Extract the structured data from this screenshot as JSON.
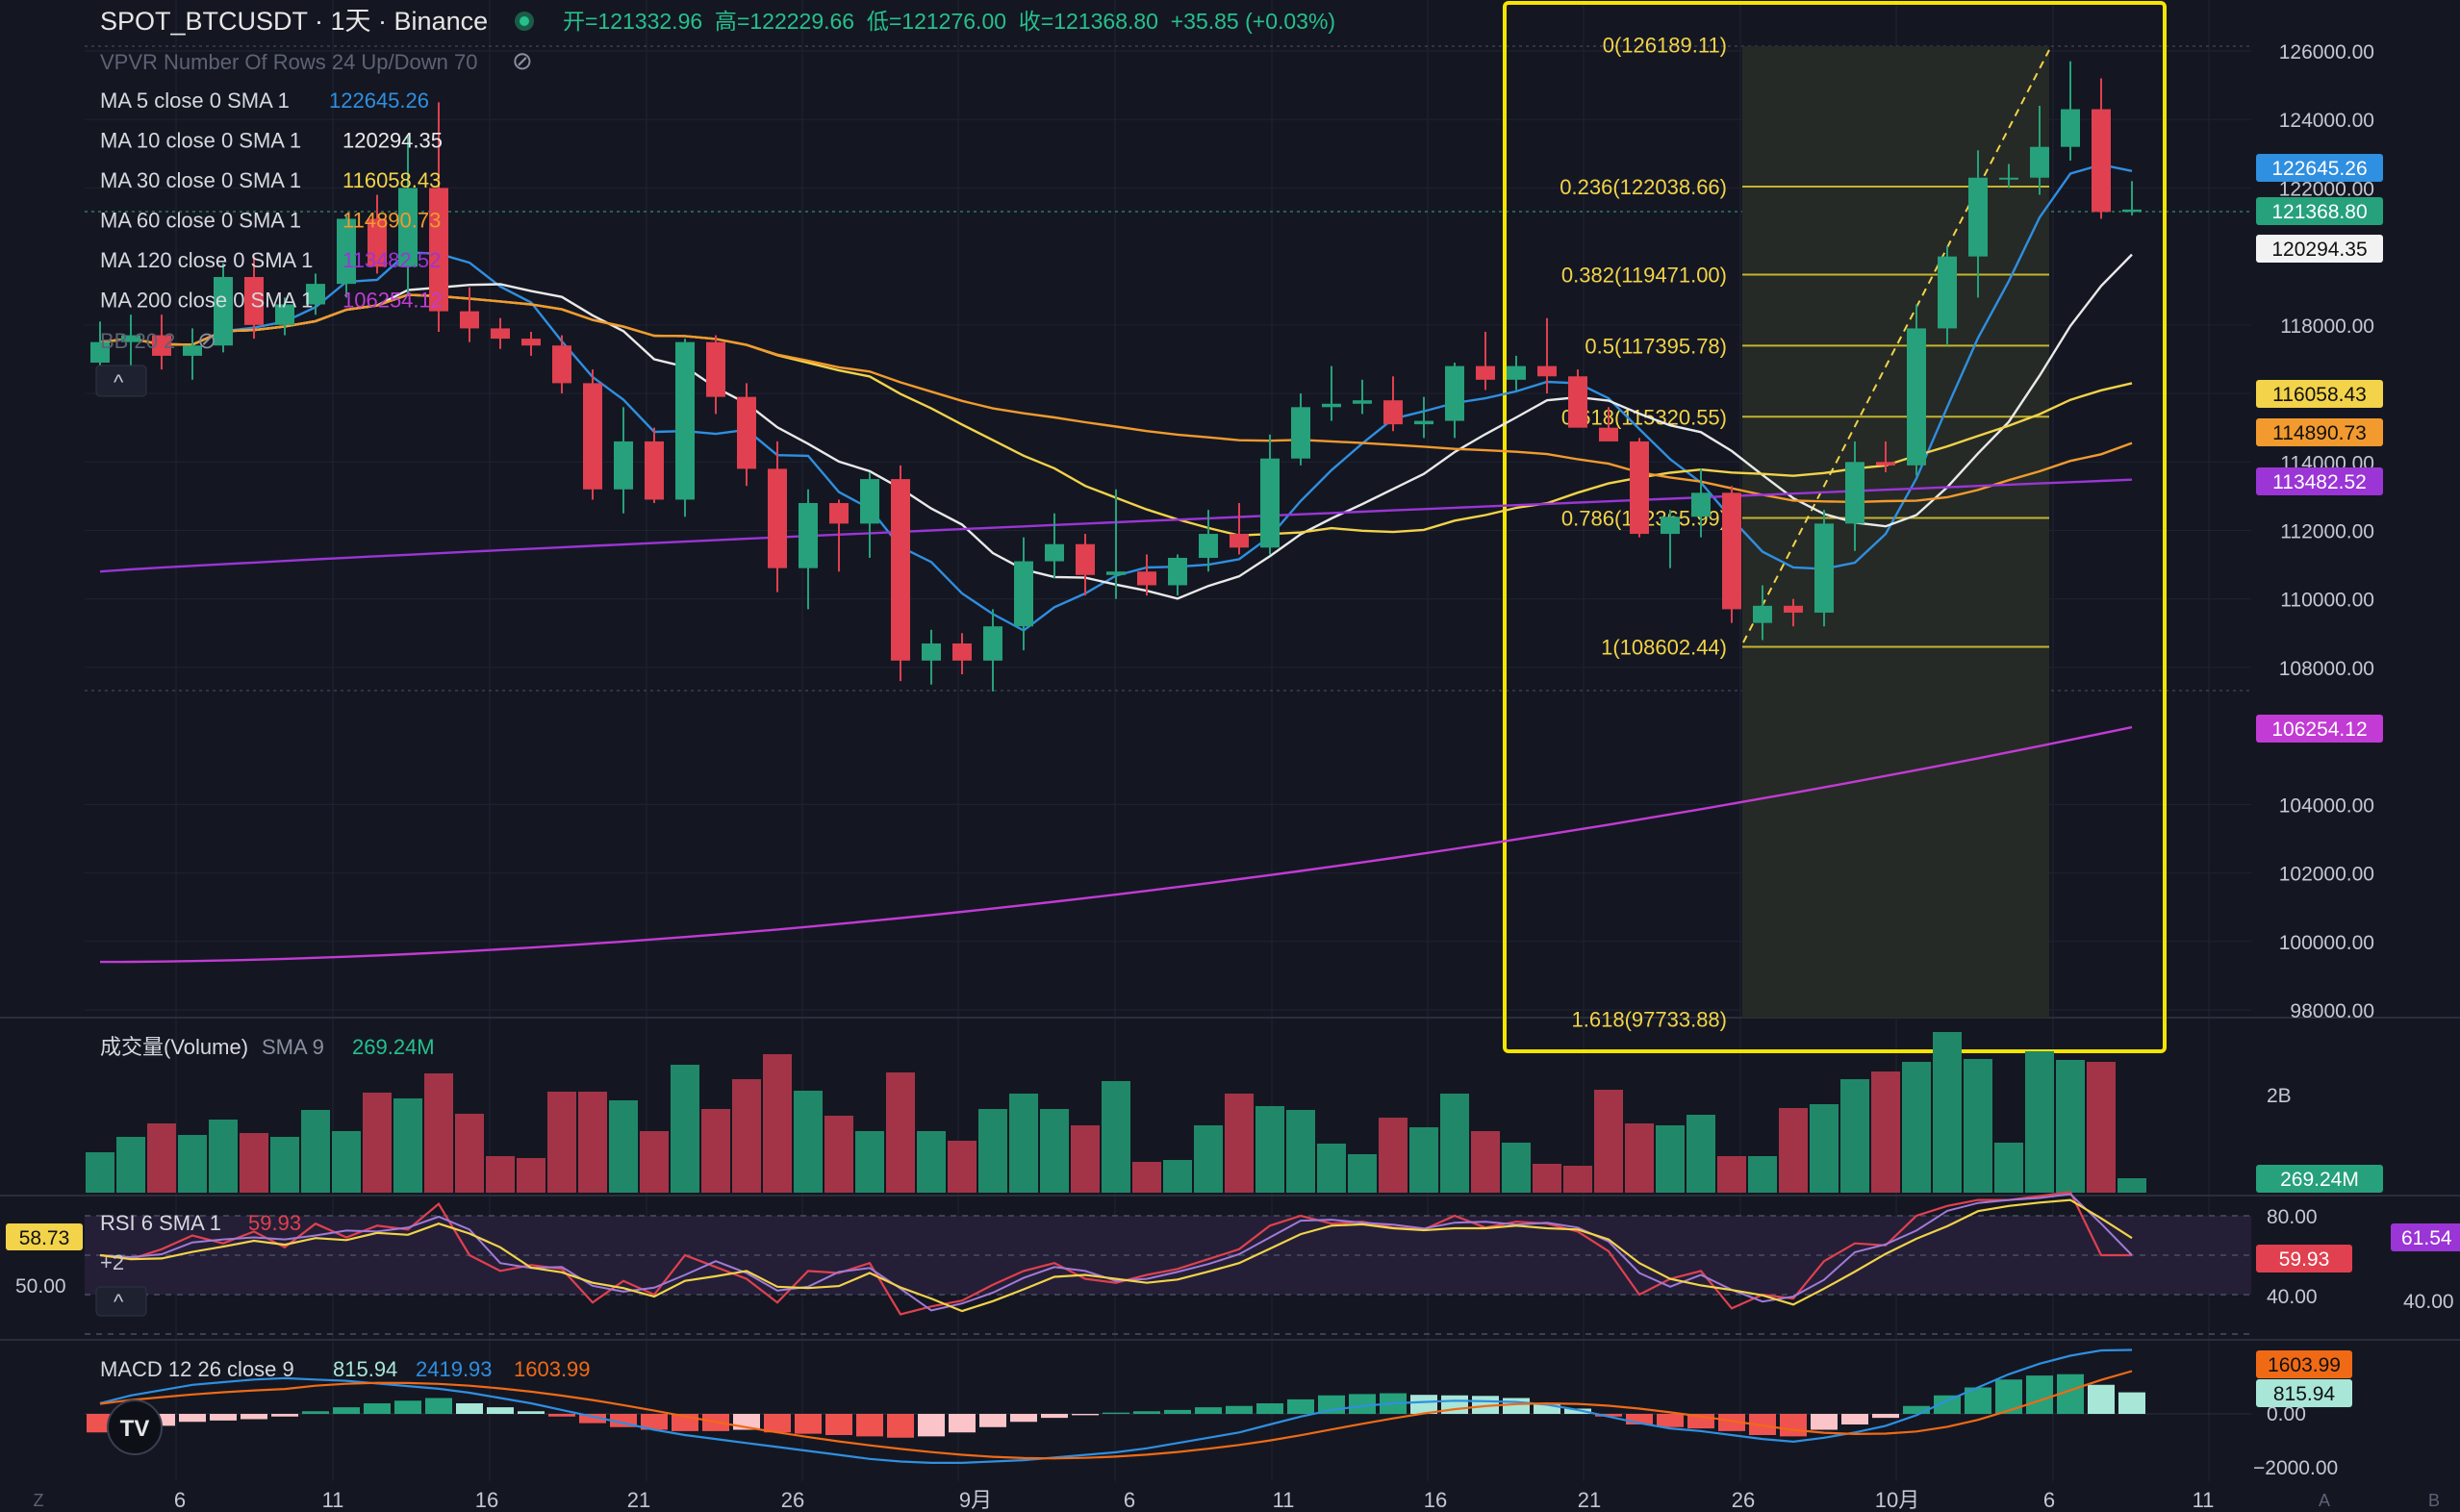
{
  "header": {
    "symbol": "SPOT_BTCUSDT · 1天 · Binance",
    "ohlc": "开=121332.96  高=122229.66  低=121276.00  收=121368.80  +35.85 (+0.03%)"
  },
  "indicators": {
    "vpvr": "VPVR Number Of Rows 24 Up/Down 70",
    "bb": "BB 20 2",
    "ma": [
      {
        "label": "MA 5 close 0 SMA 1",
        "value": "122645.26",
        "color": "#2f8fe0"
      },
      {
        "label": "MA 10 close 0 SMA 1",
        "value": "120294.35",
        "color": "#e9e9e9"
      },
      {
        "label": "MA 30 close 0 SMA 1",
        "value": "116058.43",
        "color": "#f2d349"
      },
      {
        "label": "MA 60 close 0 SMA 1",
        "value": "114890.73",
        "color": "#f29a2e"
      },
      {
        "label": "MA 120 close 0 SMA 1",
        "value": "113482.52",
        "color": "#9b35d6"
      },
      {
        "label": "MA 200 close 0 SMA 1",
        "value": "106254.12",
        "color": "#c23bd4"
      }
    ]
  },
  "price_badges": [
    {
      "value": "122645.26",
      "bg": "#2f8fe0",
      "fg": "#ffffff"
    },
    {
      "value": "121368.80",
      "bg": "#26a17b",
      "fg": "#ffffff"
    },
    {
      "value": "120294.35",
      "bg": "#f2f2f2",
      "fg": "#111111"
    },
    {
      "value": "116058.43",
      "bg": "#f2d349",
      "fg": "#111111"
    },
    {
      "value": "114890.73",
      "bg": "#f29a2e",
      "fg": "#111111"
    },
    {
      "value": "113482.52",
      "bg": "#9b35d6",
      "fg": "#ffffff"
    },
    {
      "value": "106254.12",
      "bg": "#c23bd4",
      "fg": "#ffffff"
    }
  ],
  "fib_labels": [
    {
      "label": "0(126189.11)",
      "price": 126189.11
    },
    {
      "label": "0.236(122038.66)",
      "price": 122038.66
    },
    {
      "label": "0.382(119471.00)",
      "price": 119471.0
    },
    {
      "label": "0.5(117395.78)",
      "price": 117395.78
    },
    {
      "label": "0.618(115320.55)",
      "price": 115320.55
    },
    {
      "label": "0.786(112365.99)",
      "price": 112365.99
    },
    {
      "label": "1(108602.44)",
      "price": 108602.44
    },
    {
      "label": "1.618(97733.88)",
      "price": 97733.88
    }
  ],
  "volume_panel": {
    "label": "成交量(Volume)",
    "sma_label": "SMA 9",
    "sma_value": "269.24M",
    "axis_label": "2B",
    "badge": "269.24M"
  },
  "rsi_panel": {
    "label": "RSI 6 SMA 1",
    "value": "59.93",
    "left_badge": "58.73",
    "left_level": "50.00",
    "plus": "+2",
    "badge": "59.93",
    "ticks": [
      "80.00",
      "40.00"
    ],
    "right_badge": "61.54",
    "right_level": "40.00"
  },
  "macd_panel": {
    "label": "MACD 12 26 close 9",
    "v1": "815.94",
    "v2": "2419.93",
    "v3": "1603.99",
    "badge1": "1603.99",
    "badge2": "815.94",
    "ticks": [
      "0.00",
      "−2000.00"
    ]
  },
  "x_axis": [
    "6",
    "11",
    "16",
    "21",
    "26",
    "9月",
    "6",
    "11",
    "16",
    "21",
    "26",
    "10月",
    "6",
    "11"
  ],
  "corner_labels": {
    "left": "Z",
    "right1": "A",
    "right2": "B"
  },
  "colors": {
    "up": "#26a17b",
    "down": "#e0404f",
    "highlight_box": "#f5e400"
  },
  "chart_data": {
    "type": "candlestick",
    "y_range": [
      98000,
      126000
    ],
    "y_ticks": [
      "126000.00",
      "124000.00",
      "122000.00",
      "118000.00",
      "116000.00",
      "114000.00",
      "112000.00",
      "110000.00",
      "108000.00",
      "104000.00",
      "102000.00",
      "100000.00",
      "98000.00"
    ],
    "candles": [
      [
        116900,
        118100,
        116300,
        117500
      ],
      [
        117500,
        118300,
        116800,
        117700
      ],
      [
        117700,
        118300,
        116700,
        117100
      ],
      [
        117100,
        117900,
        116400,
        117400
      ],
      [
        117400,
        119800,
        117200,
        119400
      ],
      [
        119400,
        120000,
        117600,
        118000
      ],
      [
        118000,
        118800,
        117700,
        118600
      ],
      [
        118600,
        119500,
        118300,
        119200
      ],
      [
        119200,
        121200,
        118800,
        121100
      ],
      [
        121100,
        121800,
        119500,
        119700
      ],
      [
        119700,
        123500,
        118900,
        122000
      ],
      [
        122000,
        124500,
        117800,
        118400
      ],
      [
        118400,
        119100,
        117500,
        117900
      ],
      [
        117900,
        118200,
        117300,
        117600
      ],
      [
        117600,
        117800,
        117100,
        117400
      ],
      [
        117400,
        117700,
        116000,
        116300
      ],
      [
        116300,
        116700,
        112900,
        113200
      ],
      [
        113200,
        115600,
        112500,
        114600
      ],
      [
        114600,
        115000,
        112800,
        112900
      ],
      [
        112900,
        117600,
        112400,
        117500
      ],
      [
        117500,
        117700,
        115400,
        115900
      ],
      [
        115900,
        116300,
        113300,
        113800
      ],
      [
        113800,
        114600,
        110200,
        110900
      ],
      [
        110900,
        113200,
        109700,
        112800
      ],
      [
        112800,
        112900,
        110800,
        112200
      ],
      [
        112200,
        113700,
        111200,
        113500
      ],
      [
        113500,
        113900,
        107600,
        108200
      ],
      [
        108200,
        109100,
        107500,
        108700
      ],
      [
        108700,
        109000,
        107800,
        108200
      ],
      [
        108200,
        109700,
        107300,
        109200
      ],
      [
        109200,
        111800,
        108500,
        111100
      ],
      [
        111100,
        112500,
        110600,
        111600
      ],
      [
        111600,
        111900,
        110100,
        110700
      ],
      [
        110700,
        113200,
        110000,
        110800
      ],
      [
        110800,
        111300,
        110100,
        110400
      ],
      [
        110400,
        111300,
        110100,
        111200
      ],
      [
        111200,
        112600,
        110800,
        111900
      ],
      [
        111900,
        112800,
        111300,
        111500
      ],
      [
        111500,
        114800,
        111300,
        114100
      ],
      [
        114100,
        116000,
        113900,
        115600
      ],
      [
        115600,
        116800,
        115200,
        115700
      ],
      [
        115700,
        116400,
        115400,
        115800
      ],
      [
        115800,
        116500,
        114900,
        115100
      ],
      [
        115100,
        115900,
        114700,
        115200
      ],
      [
        115200,
        116900,
        114700,
        116800
      ],
      [
        116800,
        117800,
        116100,
        116400
      ],
      [
        116400,
        117100,
        116100,
        116800
      ],
      [
        116800,
        118200,
        116000,
        116500
      ],
      [
        116500,
        116700,
        115200,
        115000
      ],
      [
        115000,
        115600,
        114700,
        114600
      ],
      [
        114600,
        114700,
        111800,
        111900
      ],
      [
        111900,
        112600,
        110900,
        112400
      ],
      [
        112400,
        113800,
        111800,
        113100
      ],
      [
        113100,
        113300,
        109300,
        109700
      ],
      [
        109300,
        110400,
        108800,
        109800
      ],
      [
        109800,
        110000,
        109200,
        109600
      ],
      [
        109600,
        112600,
        109200,
        112200
      ],
      [
        112200,
        114600,
        111400,
        114000
      ],
      [
        114000,
        114600,
        113700,
        113900
      ],
      [
        113900,
        118600,
        113600,
        117900
      ],
      [
        117900,
        120300,
        117400,
        120000
      ],
      [
        120000,
        123100,
        118800,
        122300
      ],
      [
        122300,
        122700,
        122000,
        122300
      ],
      [
        122300,
        124400,
        121800,
        123200
      ],
      [
        123200,
        125700,
        122800,
        124300
      ],
      [
        124300,
        125200,
        121100,
        121300
      ],
      [
        121300,
        122200,
        121200,
        121370
      ]
    ],
    "volume": {
      "axis_label": "2B",
      "last": "269.24M"
    },
    "rsi": {
      "period": 6,
      "last": 59.93,
      "levels": [
        80,
        40
      ]
    },
    "macd": {
      "fast": 12,
      "slow": 26,
      "signal": 9,
      "macd": 2419.93,
      "signal_value": 1603.99,
      "hist": 815.94
    }
  }
}
